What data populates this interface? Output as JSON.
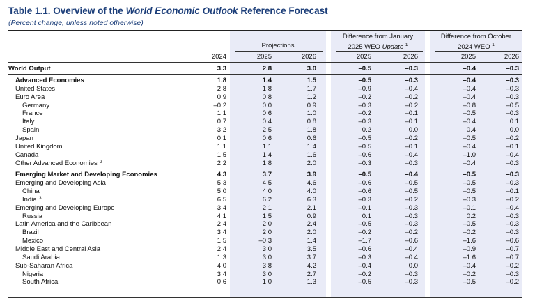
{
  "title": {
    "prefix": "Table 1.1. Overview of the ",
    "italic": "World Economic Outlook",
    "suffix": " Reference Forecast"
  },
  "subtitle": "(Percent change, unless noted otherwise)",
  "headers": {
    "projections": "Projections",
    "diff_jan_line1": "Difference from January",
    "diff_jan_line2_prefix": "2025 WEO ",
    "diff_jan_line2_italic": "Update",
    "diff_jan_note": "1",
    "diff_oct_line1": "Difference from October",
    "diff_oct_line2": "2024 WEO",
    "diff_oct_note": "1",
    "years": [
      "2024",
      "2025",
      "2026",
      "2025",
      "2026",
      "2025",
      "2026"
    ]
  },
  "rows": [
    {
      "label": "World Output",
      "note": "",
      "indent": 0,
      "bold": true,
      "values": [
        "3.3",
        "2.8",
        "3.0",
        "–0.5",
        "–0.3",
        "–0.4",
        "–0.3"
      ]
    },
    {
      "label": "Advanced Economies",
      "note": "",
      "indent": 1,
      "bold": true,
      "values": [
        "1.8",
        "1.4",
        "1.5",
        "–0.5",
        "–0.3",
        "–0.4",
        "–0.3"
      ]
    },
    {
      "label": "United States",
      "note": "",
      "indent": 1,
      "bold": false,
      "values": [
        "2.8",
        "1.8",
        "1.7",
        "–0.9",
        "–0.4",
        "–0.4",
        "–0.3"
      ]
    },
    {
      "label": "Euro Area",
      "note": "",
      "indent": 1,
      "bold": false,
      "values": [
        "0.9",
        "0.8",
        "1.2",
        "–0.2",
        "–0.2",
        "–0.4",
        "–0.3"
      ]
    },
    {
      "label": "Germany",
      "note": "",
      "indent": 2,
      "bold": false,
      "values": [
        "–0.2",
        "0.0",
        "0.9",
        "–0.3",
        "–0.2",
        "–0.8",
        "–0.5"
      ]
    },
    {
      "label": "France",
      "note": "",
      "indent": 2,
      "bold": false,
      "values": [
        "1.1",
        "0.6",
        "1.0",
        "–0.2",
        "–0.1",
        "–0.5",
        "–0.3"
      ]
    },
    {
      "label": "Italy",
      "note": "",
      "indent": 2,
      "bold": false,
      "values": [
        "0.7",
        "0.4",
        "0.8",
        "–0.3",
        "–0.1",
        "–0.4",
        "0.1"
      ]
    },
    {
      "label": "Spain",
      "note": "",
      "indent": 2,
      "bold": false,
      "values": [
        "3.2",
        "2.5",
        "1.8",
        "0.2",
        "0.0",
        "0.4",
        "0.0"
      ]
    },
    {
      "label": "Japan",
      "note": "",
      "indent": 1,
      "bold": false,
      "values": [
        "0.1",
        "0.6",
        "0.6",
        "–0.5",
        "–0.2",
        "–0.5",
        "–0.2"
      ]
    },
    {
      "label": "United Kingdom",
      "note": "",
      "indent": 1,
      "bold": false,
      "values": [
        "1.1",
        "1.1",
        "1.4",
        "–0.5",
        "–0.1",
        "–0.4",
        "–0.1"
      ]
    },
    {
      "label": "Canada",
      "note": "",
      "indent": 1,
      "bold": false,
      "values": [
        "1.5",
        "1.4",
        "1.6",
        "–0.6",
        "–0.4",
        "–1.0",
        "–0.4"
      ]
    },
    {
      "label": "Other Advanced Economies",
      "note": "2",
      "indent": 1,
      "bold": false,
      "values": [
        "2.2",
        "1.8",
        "2.0",
        "–0.3",
        "–0.3",
        "–0.4",
        "–0.3"
      ]
    },
    {
      "label": "Emerging Market and Developing Economies",
      "note": "",
      "indent": 1,
      "bold": true,
      "values": [
        "4.3",
        "3.7",
        "3.9",
        "–0.5",
        "–0.4",
        "–0.5",
        "–0.3"
      ]
    },
    {
      "label": "Emerging and Developing Asia",
      "note": "",
      "indent": 1,
      "bold": false,
      "values": [
        "5.3",
        "4.5",
        "4.6",
        "–0.6",
        "–0.5",
        "–0.5",
        "–0.3"
      ]
    },
    {
      "label": "China",
      "note": "",
      "indent": 2,
      "bold": false,
      "values": [
        "5.0",
        "4.0",
        "4.0",
        "–0.6",
        "–0.5",
        "–0.5",
        "–0.1"
      ]
    },
    {
      "label": "India",
      "note": "3",
      "indent": 2,
      "bold": false,
      "values": [
        "6.5",
        "6.2",
        "6.3",
        "–0.3",
        "–0.2",
        "–0.3",
        "–0.2"
      ]
    },
    {
      "label": "Emerging and Developing Europe",
      "note": "",
      "indent": 1,
      "bold": false,
      "values": [
        "3.4",
        "2.1",
        "2.1",
        "–0.1",
        "–0.3",
        "–0.1",
        "–0.4"
      ]
    },
    {
      "label": "Russia",
      "note": "",
      "indent": 2,
      "bold": false,
      "values": [
        "4.1",
        "1.5",
        "0.9",
        "0.1",
        "–0.3",
        "0.2",
        "–0.3"
      ]
    },
    {
      "label": "Latin America and the Caribbean",
      "note": "",
      "indent": 1,
      "bold": false,
      "values": [
        "2.4",
        "2.0",
        "2.4",
        "–0.5",
        "–0.3",
        "–0.5",
        "–0.3"
      ]
    },
    {
      "label": "Brazil",
      "note": "",
      "indent": 2,
      "bold": false,
      "values": [
        "3.4",
        "2.0",
        "2.0",
        "–0.2",
        "–0.2",
        "–0.2",
        "–0.3"
      ]
    },
    {
      "label": "Mexico",
      "note": "",
      "indent": 2,
      "bold": false,
      "values": [
        "1.5",
        "–0.3",
        "1.4",
        "–1.7",
        "–0.6",
        "–1.6",
        "–0.6"
      ]
    },
    {
      "label": "Middle East and Central Asia",
      "note": "",
      "indent": 1,
      "bold": false,
      "values": [
        "2.4",
        "3.0",
        "3.5",
        "–0.6",
        "–0.4",
        "–0.9",
        "–0.7"
      ]
    },
    {
      "label": "Saudi Arabia",
      "note": "",
      "indent": 2,
      "bold": false,
      "values": [
        "1.3",
        "3.0",
        "3.7",
        "–0.3",
        "–0.4",
        "–1.6",
        "–0.7"
      ]
    },
    {
      "label": "Sub-Saharan Africa",
      "note": "",
      "indent": 1,
      "bold": false,
      "values": [
        "4.0",
        "3.8",
        "4.2",
        "–0.4",
        "0.0",
        "–0.4",
        "–0.2"
      ]
    },
    {
      "label": "Nigeria",
      "note": "",
      "indent": 2,
      "bold": false,
      "values": [
        "3.4",
        "3.0",
        "2.7",
        "–0.2",
        "–0.3",
        "–0.2",
        "–0.3"
      ]
    },
    {
      "label": "South Africa",
      "note": "",
      "indent": 2,
      "bold": false,
      "values": [
        "0.6",
        "1.0",
        "1.3",
        "–0.5",
        "–0.3",
        "–0.5",
        "–0.2"
      ]
    }
  ]
}
